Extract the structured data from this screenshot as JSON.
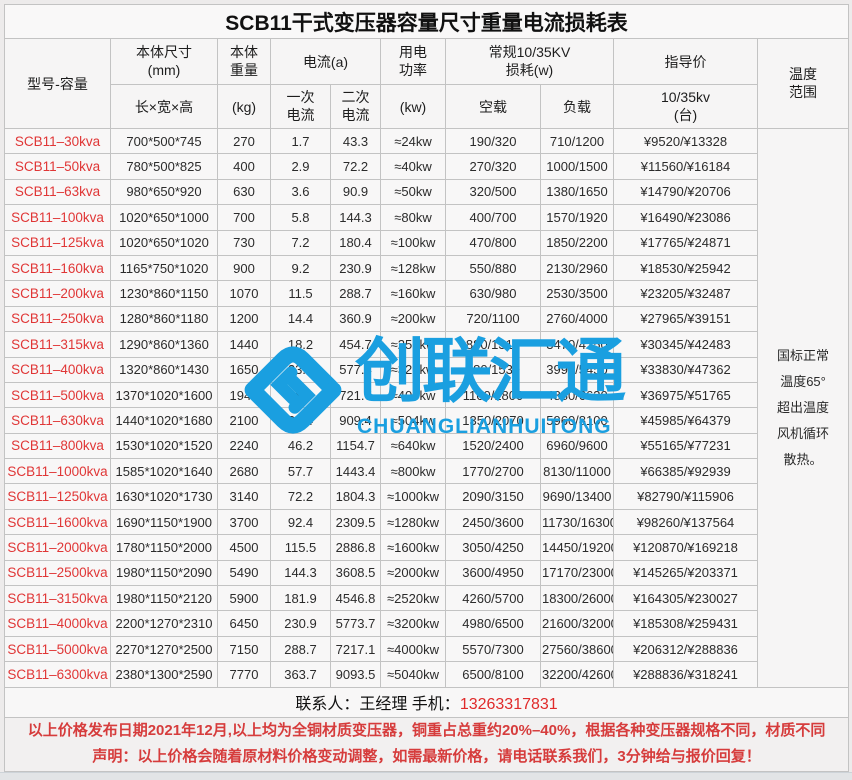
{
  "title": "SCB11干式变压器容量尺寸重量电流损耗表",
  "header": {
    "model": "型号-容量",
    "dims": "本体尺寸\n(mm)",
    "dims_sub": "长×宽×高",
    "weight": "本体\n重量",
    "weight_sub": "(kg)",
    "current": "电流(a)",
    "current_primary": "一次\n电流",
    "current_secondary": "二次\n电流",
    "power": "用电\n功率",
    "power_sub": "(kw)",
    "loss": "常规10/35KV\n损耗(w)",
    "loss_noload": "空载",
    "loss_load": "负载",
    "price": "指导价",
    "price_sub": "10/35kv\n(台)",
    "temp": "温度\n范围"
  },
  "table": {
    "rows": [
      {
        "model": "SCB11–30kva",
        "dims": "700*500*745",
        "weight": "270",
        "i1": "1.7",
        "i2": "43.3",
        "power": "≈24kw",
        "noload": "190/320",
        "load": "710/1200",
        "price": "¥9520/¥13328"
      },
      {
        "model": "SCB11–50kva",
        "dims": "780*500*825",
        "weight": "400",
        "i1": "2.9",
        "i2": "72.2",
        "power": "≈40kw",
        "noload": "270/320",
        "load": "1000/1500",
        "price": "¥11560/¥16184"
      },
      {
        "model": "SCB11–63kva",
        "dims": "980*650*920",
        "weight": "630",
        "i1": "3.6",
        "i2": "90.9",
        "power": "≈50kw",
        "noload": "320/500",
        "load": "1380/1650",
        "price": "¥14790/¥20706"
      },
      {
        "model": "SCB11–100kva",
        "dims": "1020*650*1000",
        "weight": "700",
        "i1": "5.8",
        "i2": "144.3",
        "power": "≈80kw",
        "noload": "400/700",
        "load": "1570/1920",
        "price": "¥16490/¥23086"
      },
      {
        "model": "SCB11–125kva",
        "dims": "1020*650*1020",
        "weight": "730",
        "i1": "7.2",
        "i2": "180.4",
        "power": "≈100kw",
        "noload": "470/800",
        "load": "1850/2200",
        "price": "¥17765/¥24871"
      },
      {
        "model": "SCB11–160kva",
        "dims": "1165*750*1020",
        "weight": "900",
        "i1": "9.2",
        "i2": "230.9",
        "power": "≈128kw",
        "noload": "550/880",
        "load": "2130/2960",
        "price": "¥18530/¥25942"
      },
      {
        "model": "SCB11–200kva",
        "dims": "1230*860*1150",
        "weight": "1070",
        "i1": "11.5",
        "i2": "288.7",
        "power": "≈160kw",
        "noload": "630/980",
        "load": "2530/3500",
        "price": "¥23205/¥32487"
      },
      {
        "model": "SCB11–250kva",
        "dims": "1280*860*1180",
        "weight": "1200",
        "i1": "14.4",
        "i2": "360.9",
        "power": "≈200kw",
        "noload": "720/1100",
        "load": "2760/4000",
        "price": "¥27965/¥39151"
      },
      {
        "model": "SCB11–315kva",
        "dims": "1290*860*1360",
        "weight": "1440",
        "i1": "18.2",
        "i2": "454.7",
        "power": "≈252kw",
        "noload": "880/1310",
        "load": "3470/4750",
        "price": "¥30345/¥42483"
      },
      {
        "model": "SCB11–400kva",
        "dims": "1320*860*1430",
        "weight": "1650",
        "i1": "23.1",
        "i2": "577.4",
        "power": "≈320kw",
        "noload": "980/1530",
        "load": "3990/5450",
        "price": "¥33830/¥47362"
      },
      {
        "model": "SCB11–500kva",
        "dims": "1370*1020*1600",
        "weight": "1940",
        "i1": "28.9",
        "i2": "721.7",
        "power": "≈400kw",
        "noload": "1160/1800",
        "load": "4880/6630",
        "price": "¥36975/¥51765"
      },
      {
        "model": "SCB11–630kva",
        "dims": "1440*1020*1680",
        "weight": "2100",
        "i1": "36.4",
        "i2": "909.4",
        "power": "≈504kw",
        "noload": "1350/2070",
        "load": "5960/8100",
        "price": "¥45985/¥64379"
      },
      {
        "model": "SCB11–800kva",
        "dims": "1530*1020*1520",
        "weight": "2240",
        "i1": "46.2",
        "i2": "1154.7",
        "power": "≈640kw",
        "noload": "1520/2400",
        "load": "6960/9600",
        "price": "¥55165/¥77231"
      },
      {
        "model": "SCB11–1000kva",
        "dims": "1585*1020*1640",
        "weight": "2680",
        "i1": "57.7",
        "i2": "1443.4",
        "power": "≈800kw",
        "noload": "1770/2700",
        "load": "8130/11000",
        "price": "¥66385/¥92939"
      },
      {
        "model": "SCB11–1250kva",
        "dims": "1630*1020*1730",
        "weight": "3140",
        "i1": "72.2",
        "i2": "1804.3",
        "power": "≈1000kw",
        "noload": "2090/3150",
        "load": "9690/13400",
        "price": "¥82790/¥115906"
      },
      {
        "model": "SCB11–1600kva",
        "dims": "1690*1150*1900",
        "weight": "3700",
        "i1": "92.4",
        "i2": "2309.5",
        "power": "≈1280kw",
        "noload": "2450/3600",
        "load": "11730/16300",
        "price": "¥98260/¥137564"
      },
      {
        "model": "SCB11–2000kva",
        "dims": "1780*1150*2000",
        "weight": "4500",
        "i1": "115.5",
        "i2": "2886.8",
        "power": "≈1600kw",
        "noload": "3050/4250",
        "load": "14450/19200",
        "price": "¥120870/¥169218"
      },
      {
        "model": "SCB11–2500kva",
        "dims": "1980*1150*2090",
        "weight": "5490",
        "i1": "144.3",
        "i2": "3608.5",
        "power": "≈2000kw",
        "noload": "3600/4950",
        "load": "17170/23000",
        "price": "¥145265/¥203371"
      },
      {
        "model": "SCB11–3150kva",
        "dims": "1980*1150*2120",
        "weight": "5900",
        "i1": "181.9",
        "i2": "4546.8",
        "power": "≈2520kw",
        "noload": "4260/5700",
        "load": "18300/26000",
        "price": "¥164305/¥230027"
      },
      {
        "model": "SCB11–4000kva",
        "dims": "2200*1270*2310",
        "weight": "6450",
        "i1": "230.9",
        "i2": "5773.7",
        "power": "≈3200kw",
        "noload": "4980/6500",
        "load": "21600/32000",
        "price": "¥185308/¥259431"
      },
      {
        "model": "SCB11–5000kva",
        "dims": "2270*1270*2500",
        "weight": "7150",
        "i1": "288.7",
        "i2": "7217.1",
        "power": "≈4000kw",
        "noload": "5570/7300",
        "load": "27560/38600",
        "price": "¥206312/¥288836"
      },
      {
        "model": "SCB11–6300kva",
        "dims": "2380*1300*2590",
        "weight": "7770",
        "i1": "363.7",
        "i2": "9093.5",
        "power": "≈5040kw",
        "noload": "6500/8100",
        "load": "32200/42600",
        "price": "¥288836/¥318241"
      }
    ]
  },
  "temp_note": "国标正常\n温度65°\n超出温度\n风机循环\n散热。",
  "contact": {
    "label": "联系人：王经理  手机：",
    "phone": "13263317831"
  },
  "disclaimer": {
    "line1": "以上价格发布日期2021年12月,以上均为全铜材质变压器，铜重占总重约20%–40%，根据各种变压器规格不同，材质不同",
    "line2": "声明：以上价格会随着原材料价格变动调整，如需最新价格，请电话联系我们，3分钟给与报价回复！"
  },
  "watermark": {
    "cn": "创联汇通",
    "en": "CHUANGLIANHUITONG",
    "color": "#1a9fe0"
  },
  "colors": {
    "model_red": "#e03636",
    "disclaimer_red": "#d63c3c",
    "phone_red": "#e02a2a",
    "border_gray": "#c3c3c3",
    "page_bg": "#edebeb"
  }
}
